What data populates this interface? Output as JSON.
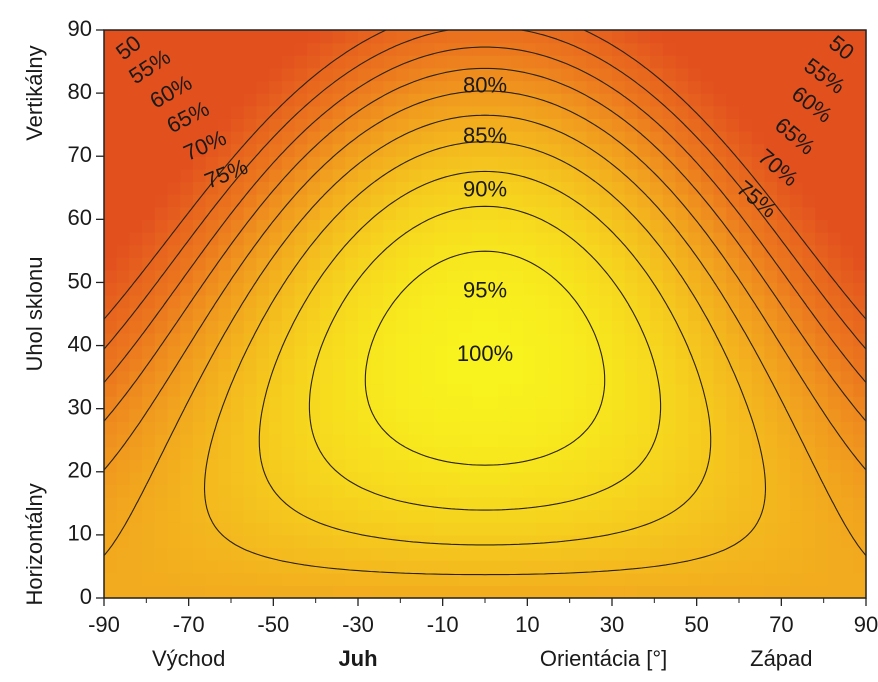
{
  "chart_data": {
    "type": "heatmap",
    "title": "",
    "x": {
      "label": "Orientácia [°]",
      "range": [
        -90,
        90
      ],
      "ticks": [
        -90,
        -70,
        -50,
        -30,
        -10,
        10,
        30,
        50,
        70,
        90
      ],
      "tick_labels": [
        "-90",
        "-70",
        "-50",
        "-30",
        "-10",
        "10",
        "30",
        "50",
        "70",
        "90"
      ],
      "direction_labels": [
        "Východ",
        "Juh",
        "Západ"
      ]
    },
    "y": {
      "label": "Uhol sklonu",
      "range": [
        0,
        90
      ],
      "ticks": [
        0,
        10,
        20,
        30,
        40,
        50,
        60,
        70,
        80,
        90
      ],
      "tick_labels": [
        "0",
        "10",
        "20",
        "30",
        "40",
        "50",
        "60",
        "70",
        "80",
        "90"
      ],
      "top_label": "Vertikálny",
      "bottom_label": "Horizontálny"
    },
    "levels": [
      50,
      55,
      60,
      65,
      70,
      75,
      80,
      85,
      90,
      95,
      100
    ],
    "contour_labels": [
      {
        "text": "50",
        "x": -84,
        "y": 87,
        "angle": -38
      },
      {
        "text": "55%",
        "x": -79,
        "y": 84,
        "angle": -33
      },
      {
        "text": "60%",
        "x": -74,
        "y": 80,
        "angle": -30
      },
      {
        "text": "65%",
        "x": -70,
        "y": 76,
        "angle": -27
      },
      {
        "text": "70%",
        "x": -66,
        "y": 71.5,
        "angle": -24
      },
      {
        "text": "75%",
        "x": -61,
        "y": 67,
        "angle": -22
      },
      {
        "text": "80%",
        "x": 0,
        "y": 81,
        "angle": 0
      },
      {
        "text": "85%",
        "x": 0,
        "y": 73,
        "angle": 0
      },
      {
        "text": "90%",
        "x": 0,
        "y": 64.5,
        "angle": 0
      },
      {
        "text": "95%",
        "x": 0,
        "y": 48.5,
        "angle": 0
      },
      {
        "text": "100%",
        "x": 0,
        "y": 38.5,
        "angle": 0
      },
      {
        "text": "50",
        "x": 84,
        "y": 87,
        "angle": 38
      },
      {
        "text": "55%",
        "x": 80,
        "y": 82.5,
        "angle": 36
      },
      {
        "text": "60%",
        "x": 77,
        "y": 78,
        "angle": 38
      },
      {
        "text": "65%",
        "x": 73,
        "y": 73,
        "angle": 40
      },
      {
        "text": "70%",
        "x": 69,
        "y": 68,
        "angle": 40
      },
      {
        "text": "75%",
        "x": 64,
        "y": 63,
        "angle": 40
      }
    ],
    "colors": {
      "high": "#f8f31c",
      "mid": "#f4b81a",
      "low": "#e6641f",
      "line": "#2b2214"
    },
    "grid": false
  }
}
